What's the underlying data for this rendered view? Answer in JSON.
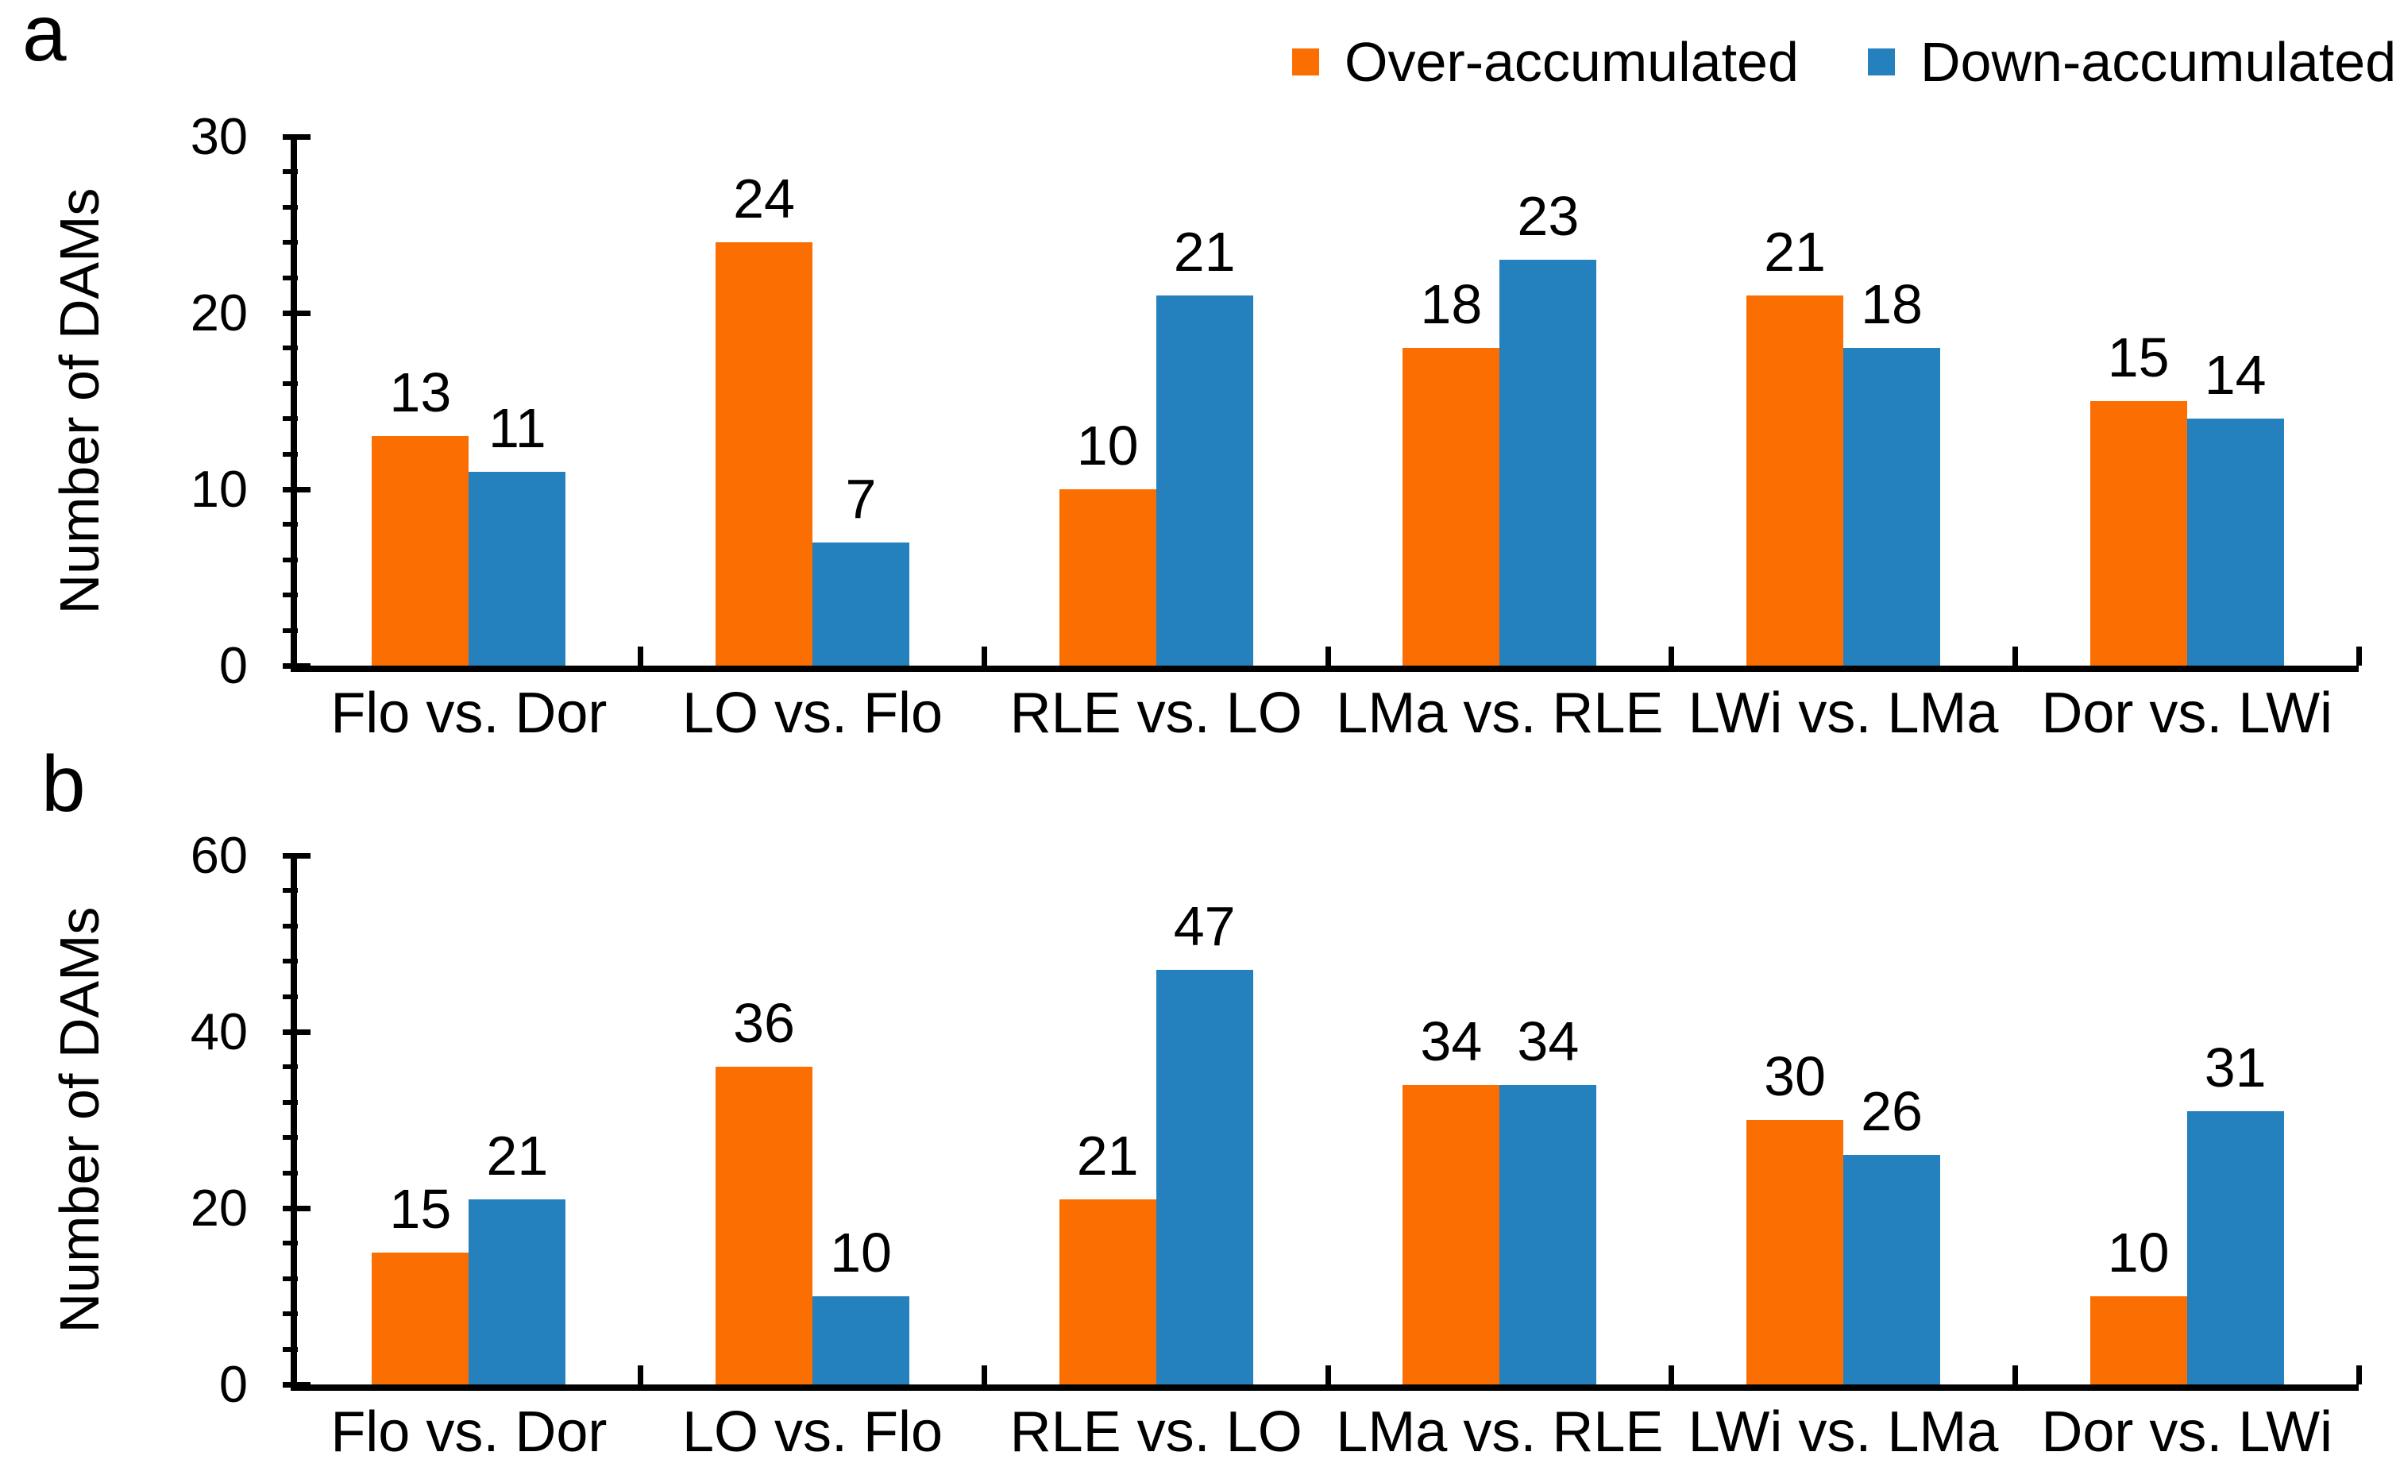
{
  "figure": {
    "panel_letters": [
      "a",
      "b"
    ],
    "legend": {
      "position": "top-right",
      "items": [
        {
          "label": "Over-accumulated",
          "color": "#FA6E02"
        },
        {
          "label": "Down-accumulated",
          "color": "#2580BE"
        }
      ]
    }
  },
  "chart_data": [
    {
      "panel": "a",
      "type": "bar",
      "title": "",
      "xlabel": "",
      "ylabel": "Number of DAMs",
      "ylim": [
        0,
        30
      ],
      "y_major_step": 10,
      "y_minor_step": 2,
      "y_tick_labels": [
        "0",
        "10",
        "20",
        "30"
      ],
      "grid": false,
      "legend_position": "top-right",
      "categories": [
        "Flo vs. Dor",
        "LO vs. Flo",
        "RLE vs. LO",
        "LMa vs. RLE",
        "LWi vs. LMa",
        "Dor vs. LWi"
      ],
      "series": [
        {
          "name": "Over-accumulated",
          "color": "#FA6E02",
          "values": [
            13,
            24,
            10,
            18,
            21,
            15
          ]
        },
        {
          "name": "Down-accumulated",
          "color": "#2580BE",
          "values": [
            11,
            7,
            21,
            23,
            18,
            14
          ]
        }
      ]
    },
    {
      "panel": "b",
      "type": "bar",
      "title": "",
      "xlabel": "",
      "ylabel": "Number of DAMs",
      "ylim": [
        0,
        60
      ],
      "y_major_step": 20,
      "y_minor_step": 4,
      "y_tick_labels": [
        "0",
        "20",
        "40",
        "60"
      ],
      "grid": false,
      "legend_position": "top-right",
      "categories": [
        "Flo vs. Dor",
        "LO vs. Flo",
        "RLE vs. LO",
        "LMa vs. RLE",
        "LWi vs. LMa",
        "Dor vs. LWi"
      ],
      "series": [
        {
          "name": "Over-accumulated",
          "color": "#FA6E02",
          "values": [
            15,
            36,
            21,
            34,
            30,
            10
          ]
        },
        {
          "name": "Down-accumulated",
          "color": "#2580BE",
          "values": [
            21,
            10,
            47,
            34,
            26,
            31
          ]
        }
      ]
    }
  ]
}
